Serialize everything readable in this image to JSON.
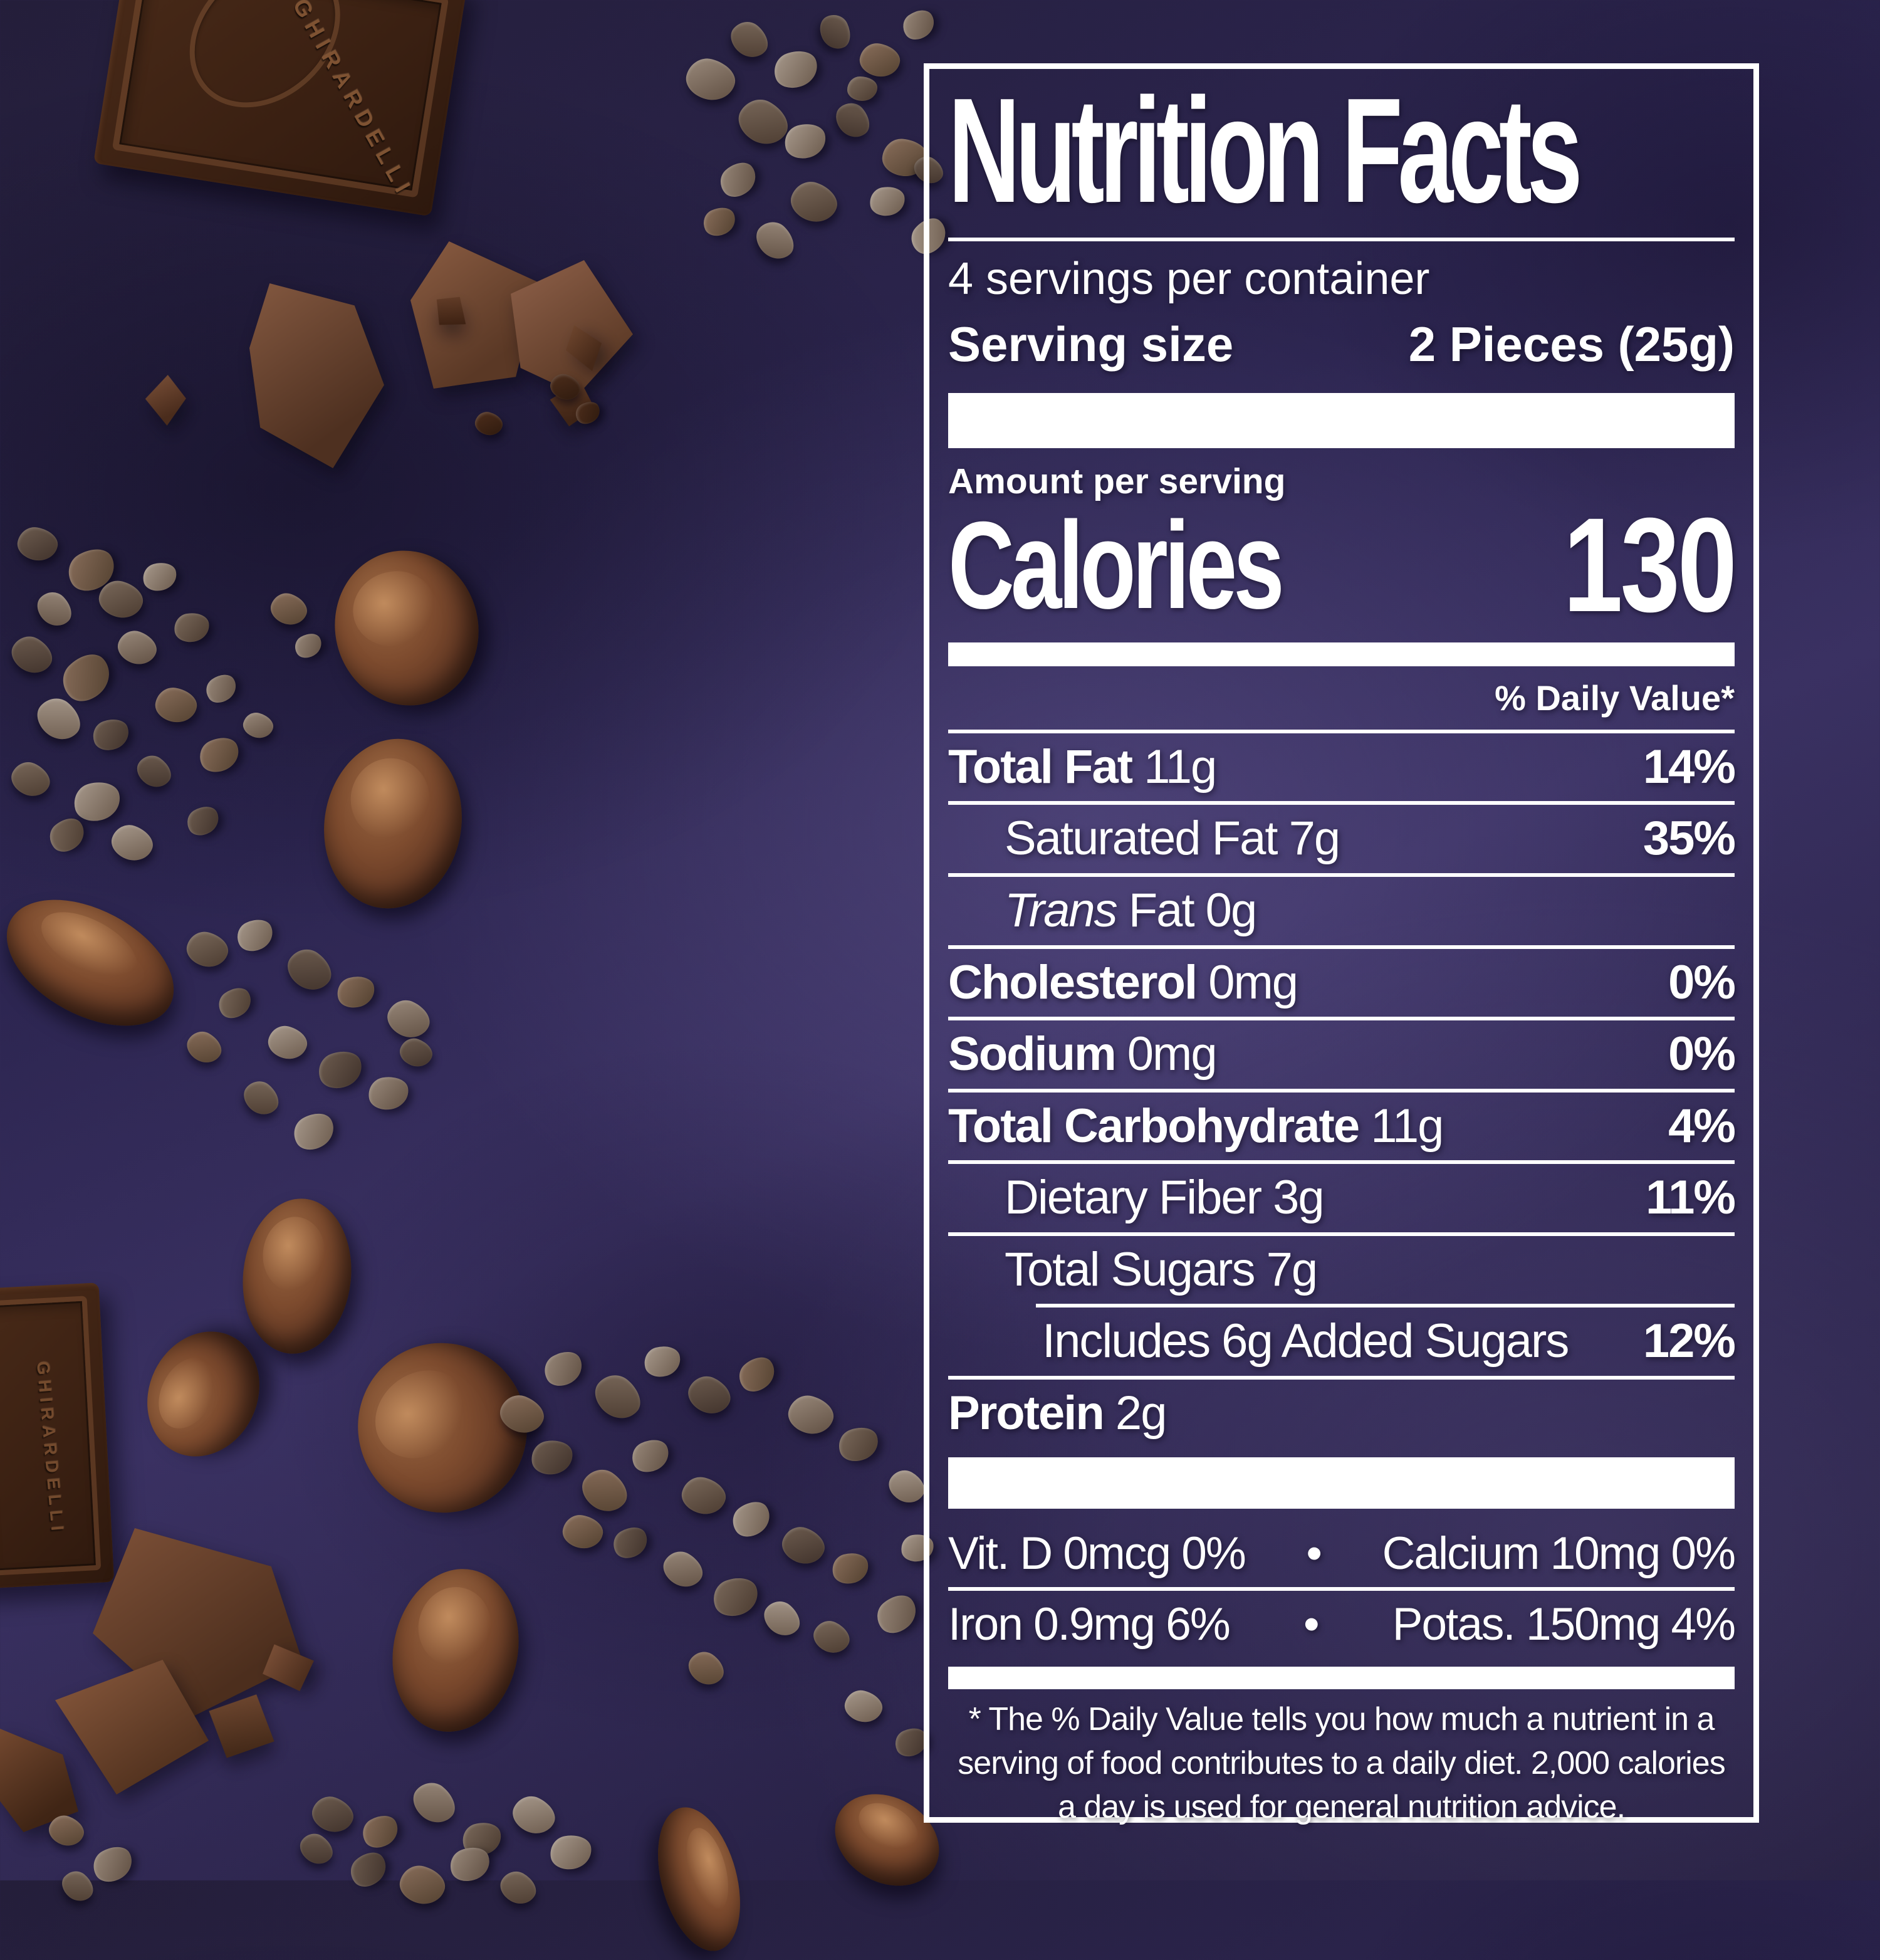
{
  "photo": {
    "embossed_brand": "GHIRARDELLI",
    "surface_color": "#2e2750",
    "chocolate_color": "#4a2b19",
    "cacao_bean_color": "#7d4b2e",
    "cacao_nib_color": "#8a7a6c"
  },
  "label": {
    "text_color": "#ffffff",
    "title": "Nutrition Facts",
    "servings_per_container": "4 servings per container",
    "serving_size_label": "Serving size",
    "serving_size_value": "2 Pieces (25g)",
    "amount_per_serving": "Amount per serving",
    "calories_label": "Calories",
    "calories_value": "130",
    "daily_value_header": "% Daily Value*",
    "rows": [
      {
        "rule_above": "full",
        "indent": 0,
        "bold": "Total Fat",
        "rest": " 11g",
        "dv": "14%"
      },
      {
        "rule_above": "full",
        "indent": 1,
        "rest": "Saturated Fat 7g",
        "dv": "35%"
      },
      {
        "rule_above": "full",
        "indent": 1,
        "italic": "Trans",
        "rest": " Fat 0g",
        "dv": ""
      },
      {
        "rule_above": "full",
        "indent": 0,
        "bold": "Cholesterol",
        "rest": " 0mg",
        "dv": "0%"
      },
      {
        "rule_above": "full",
        "indent": 0,
        "bold": "Sodium",
        "rest": " 0mg",
        "dv": "0%"
      },
      {
        "rule_above": "full",
        "indent": 0,
        "bold": "Total Carbohydrate",
        "rest": " 11g",
        "dv": "4%"
      },
      {
        "rule_above": "full",
        "indent": 1,
        "rest": "Dietary Fiber 3g",
        "dv": "11%"
      },
      {
        "rule_above": "full",
        "indent": 1,
        "rest": "Total Sugars 7g",
        "dv": ""
      },
      {
        "rule_above": "indent",
        "indent": 2,
        "rest": "Includes 6g Added Sugars",
        "dv": "12%"
      },
      {
        "rule_above": "full",
        "indent": 0,
        "bold": "Protein",
        "rest": " 2g",
        "dv": ""
      }
    ],
    "micronutrient_rows": [
      {
        "left": "Vit. D 0mcg 0%",
        "separator": "•",
        "right": "Calcium 10mg 0%"
      },
      {
        "left": "Iron 0.9mg 6%",
        "separator": "•",
        "right": "Potas. 150mg 4%"
      }
    ],
    "footnote": "* The % Daily Value tells you how much a nutrient in a serving of food contributes to a daily diet. 2,000 calories a day is used for general nutrition advice."
  }
}
